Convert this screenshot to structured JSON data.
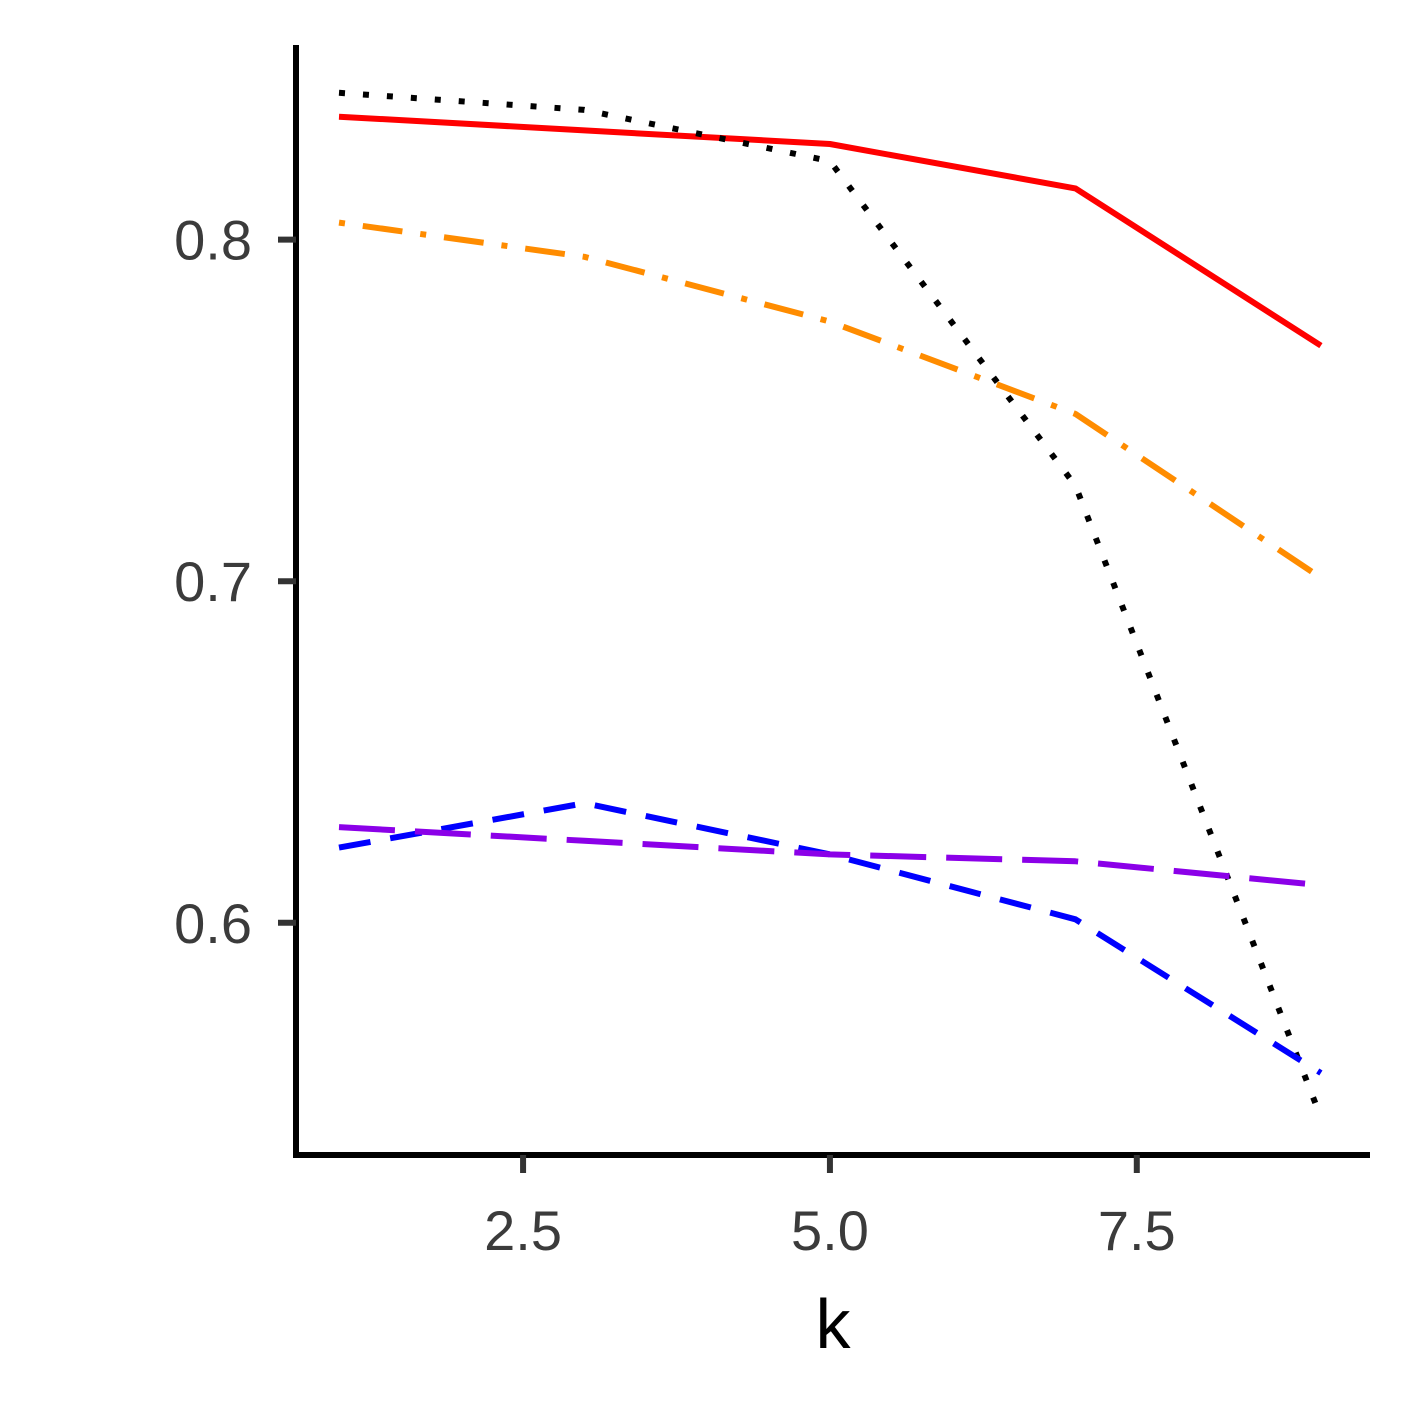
{
  "chart_data": {
    "type": "line",
    "xlabel": "k",
    "ylabel": "",
    "xlim": [
      0.65,
      9.4
    ],
    "ylim": [
      0.532,
      0.857
    ],
    "xticks": [
      {
        "value": 2.5,
        "label": "2.5"
      },
      {
        "value": 5.0,
        "label": "5.0"
      },
      {
        "value": 7.5,
        "label": "7.5"
      }
    ],
    "yticks": [
      {
        "value": 0.6,
        "label": "0.6"
      },
      {
        "value": 0.7,
        "label": "0.7"
      },
      {
        "value": 0.8,
        "label": "0.8"
      }
    ],
    "grid": false,
    "legend": "none",
    "x": [
      1,
      3,
      5,
      7,
      9
    ],
    "series": [
      {
        "color": "#ff0000",
        "line_style": "solid",
        "values": [
          0.836,
          0.832,
          0.828,
          0.815,
          0.769
        ]
      },
      {
        "color": "#000000",
        "line_style": "dotted",
        "values": [
          0.843,
          0.838,
          0.823,
          0.728,
          0.543
        ]
      },
      {
        "color": "#ff8c00",
        "line_style": "dot-dash",
        "values": [
          0.805,
          0.795,
          0.776,
          0.749,
          0.701
        ]
      },
      {
        "color": "#0000ff",
        "line_style": "dashed",
        "values": [
          0.622,
          0.635,
          0.62,
          0.601,
          0.556
        ]
      },
      {
        "color": "#8b00e8",
        "line_style": "long-dash",
        "values": [
          0.628,
          0.624,
          0.62,
          0.618,
          0.611
        ]
      }
    ]
  }
}
